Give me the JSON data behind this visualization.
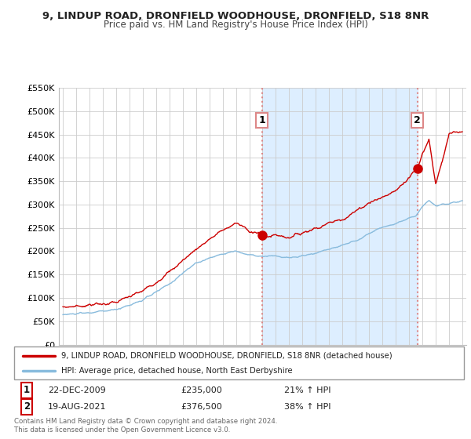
{
  "title": "9, LINDUP ROAD, DRONFIELD WOODHOUSE, DRONFIELD, S18 8NR",
  "subtitle": "Price paid vs. HM Land Registry's House Price Index (HPI)",
  "legend_line1": "9, LINDUP ROAD, DRONFIELD WOODHOUSE, DRONFIELD, S18 8NR (detached house)",
  "legend_line2": "HPI: Average price, detached house, North East Derbyshire",
  "transaction1_date": "22-DEC-2009",
  "transaction1_price": "£235,000",
  "transaction1_hpi": "21% ↑ HPI",
  "transaction2_date": "19-AUG-2021",
  "transaction2_price": "£376,500",
  "transaction2_hpi": "38% ↑ HPI",
  "footer": "Contains HM Land Registry data © Crown copyright and database right 2024.\nThis data is licensed under the Open Government Licence v3.0.",
  "ylim": [
    0,
    550000
  ],
  "yticks": [
    0,
    50000,
    100000,
    150000,
    200000,
    250000,
    300000,
    350000,
    400000,
    450000,
    500000,
    550000
  ],
  "ytick_labels": [
    "£0",
    "£50K",
    "£100K",
    "£150K",
    "£200K",
    "£250K",
    "£300K",
    "£350K",
    "£400K",
    "£450K",
    "£500K",
    "£550K"
  ],
  "line_color_property": "#cc0000",
  "line_color_hpi": "#88bbdd",
  "vline_color": "#dd8888",
  "shade_color": "#ddeeff",
  "marker_color": "#cc0000",
  "background_color": "#ffffff",
  "grid_color": "#cccccc",
  "transaction1_x": 2009.97,
  "transaction2_x": 2021.63,
  "transaction1_y": 235000,
  "transaction2_y": 376500,
  "xlim_left": 1994.7,
  "xlim_right": 2025.3
}
